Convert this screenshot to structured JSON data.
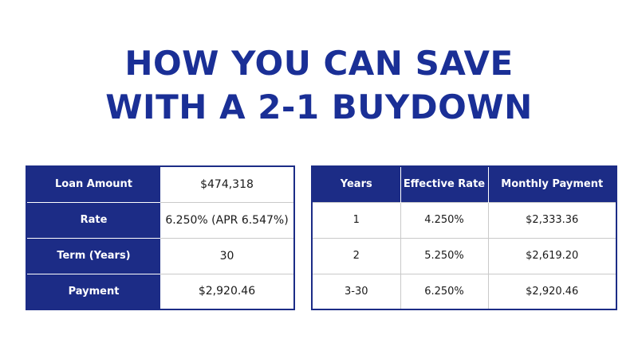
{
  "headline": {
    "line1": "HOW YOU CAN SAVE",
    "line2": "WITH A 2-1 BUYDOWN"
  },
  "colors": {
    "brand_navy": "#1c2c86",
    "headline_blue": "#1a2f96",
    "background": "#ffffff"
  },
  "loan_table": {
    "rows": [
      {
        "label": "Loan Amount",
        "value": "$474,318"
      },
      {
        "label": "Rate",
        "value": "6.250% (APR 6.547%)"
      },
      {
        "label": "Term (Years)",
        "value": "30"
      },
      {
        "label": "Payment",
        "value": "$2,920.46"
      }
    ]
  },
  "rate_table": {
    "headers": [
      "Years",
      "Effective Rate",
      "Monthly Payment"
    ],
    "rows": [
      [
        "1",
        "4.250%",
        "$2,333.36"
      ],
      [
        "2",
        "5.250%",
        "$2,619.20"
      ],
      [
        "3-30",
        "6.250%",
        "$2,920.46"
      ]
    ]
  }
}
